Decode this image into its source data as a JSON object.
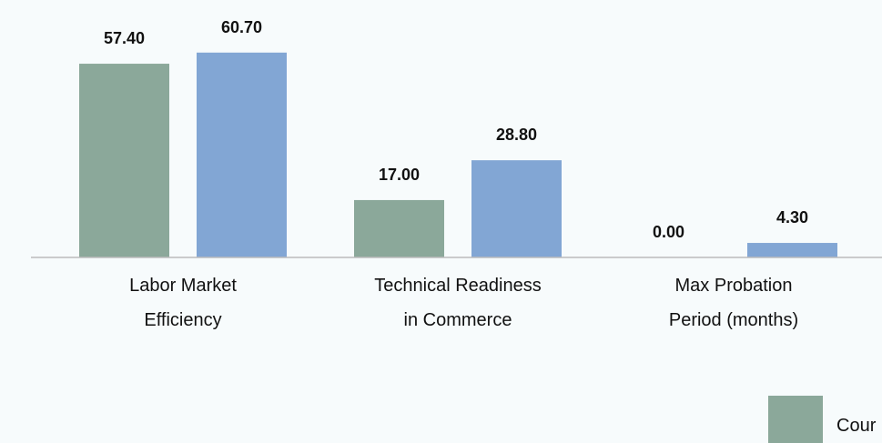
{
  "chart_data": {
    "type": "bar",
    "categories": [
      [
        "Labor Market",
        "Efficiency"
      ],
      [
        "Technical Readiness",
        "in Commerce"
      ],
      [
        "Max Probation",
        "Period (months)"
      ]
    ],
    "series": [
      {
        "name": "Cour",
        "color": "#8ba89a",
        "values": [
          57.4,
          17.0,
          0.0
        ]
      },
      {
        "color": "#82a6d4",
        "values": [
          60.7,
          28.8,
          4.3
        ]
      }
    ],
    "value_labels": [
      [
        "57.40",
        "17.00",
        "0.00"
      ],
      [
        "60.70",
        "28.80",
        "4.30"
      ]
    ],
    "legend_placement": "bottom-right",
    "grid": false,
    "axis_color": "#bbbbbb"
  }
}
